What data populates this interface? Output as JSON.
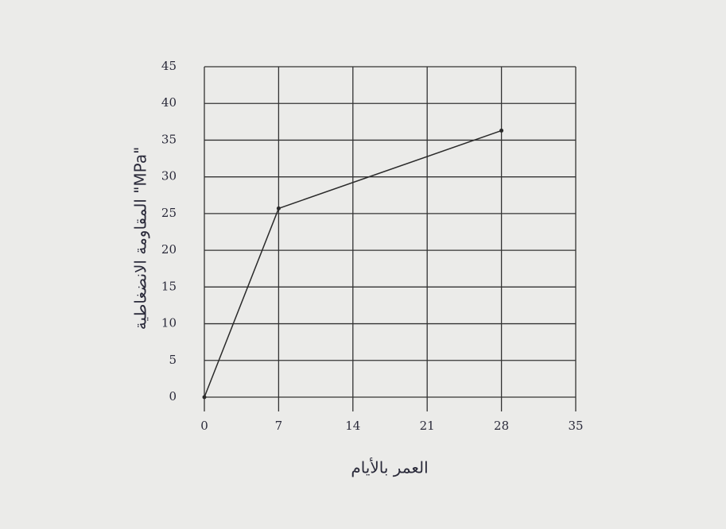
{
  "chart_data": {
    "type": "line",
    "x_label": "العمر بالأيام",
    "y_label": "المقاومة الانضغاطية \"MPa\"",
    "x": [
      0,
      7,
      28
    ],
    "series": [
      {
        "color": "#2a2a2a",
        "values": [
          0,
          25.7,
          36.3
        ]
      }
    ],
    "xlim": [
      0,
      35
    ],
    "xticks": [
      0,
      7,
      14,
      21,
      28,
      35
    ],
    "ylim": [
      0,
      45
    ],
    "yticks": [
      0,
      5,
      10,
      15,
      20,
      25,
      30,
      35,
      40,
      45
    ],
    "grid": true
  }
}
